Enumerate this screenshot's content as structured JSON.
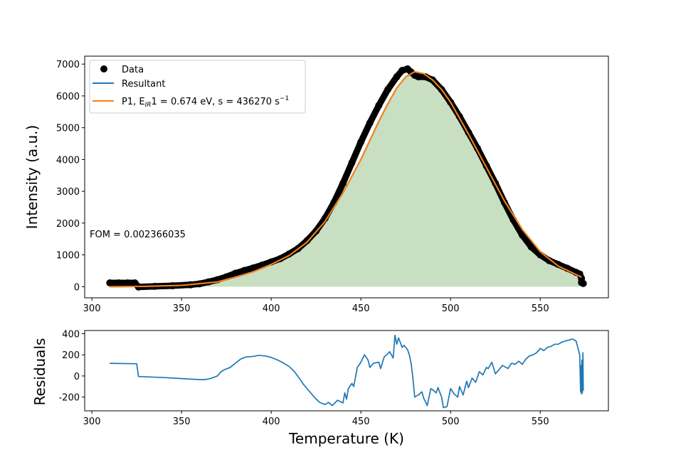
{
  "chart_data": [
    {
      "type": "scatter",
      "ylabel": "Intensity  (a.u.)",
      "xlim": [
        296,
        588
      ],
      "ylim": [
        -350,
        7250
      ],
      "xticks": [
        300,
        350,
        400,
        450,
        500,
        550
      ],
      "yticks": [
        0,
        1000,
        2000,
        3000,
        4000,
        5000,
        6000,
        7000
      ],
      "grid": false,
      "legend_position": "top-left",
      "legend": [
        {
          "label": "Data",
          "marker": "dot",
          "color": "#000000"
        },
        {
          "label": "Resultant",
          "marker": "line",
          "color": "#1f77b4"
        },
        {
          "label_prefix": "P1, E",
          "label_sub": "IR",
          "label_mid": "1 = 0.674 eV, s = 436270 s",
          "label_sup": "−1",
          "marker": "line",
          "color": "#ff7f0e"
        }
      ],
      "annotation": "FOM = 0.002366035",
      "fill_color": "#c8dfc2",
      "series": [
        {
          "name": "Data",
          "color": "#000000",
          "x": [
            310,
            315,
            320,
            324,
            326,
            335,
            345,
            355,
            360,
            365,
            370,
            375,
            380,
            385,
            390,
            395,
            400,
            405,
            410,
            415,
            420,
            425,
            430,
            435,
            440,
            445,
            450,
            455,
            460,
            465,
            470,
            473,
            476,
            478,
            480,
            482,
            486,
            490,
            495,
            500,
            505,
            510,
            515,
            520,
            525,
            530,
            535,
            540,
            545,
            550,
            555,
            560,
            565,
            570,
            572,
            573,
            573,
            574
          ],
          "y": [
            120,
            120,
            120,
            120,
            -10,
            10,
            30,
            60,
            90,
            150,
            220,
            310,
            420,
            510,
            590,
            680,
            780,
            880,
            1030,
            1200,
            1450,
            1750,
            2150,
            2650,
            3250,
            3900,
            4550,
            5150,
            5700,
            6200,
            6600,
            6800,
            6850,
            6750,
            6650,
            6600,
            6600,
            6500,
            6200,
            5800,
            5350,
            4850,
            4350,
            3800,
            3250,
            2650,
            2100,
            1620,
            1250,
            1000,
            820,
            700,
            580,
            450,
            400,
            260,
            130,
            100
          ]
        },
        {
          "name": "Resultant",
          "color": "#1f77b4",
          "x": [
            310,
            330,
            350,
            370,
            380,
            390,
            400,
            410,
            420,
            430,
            440,
            450,
            460,
            465,
            470,
            475,
            480,
            485,
            490,
            495,
            500,
            510,
            520,
            530,
            540,
            550,
            560,
            570,
            573
          ],
          "y": [
            0,
            10,
            40,
            150,
            300,
            470,
            700,
            980,
            1400,
            2050,
            2950,
            4000,
            5200,
            5750,
            6250,
            6600,
            6760,
            6700,
            6500,
            6200,
            5800,
            4800,
            3750,
            2700,
            1800,
            1100,
            650,
            380,
            300
          ]
        },
        {
          "name": "P1, EIR1 = 0.674 eV, s = 436270 s−1",
          "color": "#ff7f0e",
          "x": [
            310,
            330,
            350,
            370,
            380,
            390,
            400,
            410,
            420,
            430,
            440,
            450,
            460,
            465,
            470,
            475,
            480,
            485,
            490,
            495,
            500,
            510,
            520,
            530,
            540,
            550,
            560,
            570,
            573
          ],
          "y": [
            0,
            10,
            40,
            150,
            300,
            470,
            700,
            980,
            1400,
            2050,
            2950,
            4000,
            5200,
            5750,
            6250,
            6600,
            6760,
            6700,
            6500,
            6200,
            5800,
            4800,
            3750,
            2700,
            1800,
            1100,
            650,
            380,
            300
          ]
        }
      ]
    },
    {
      "type": "line",
      "xlabel": "Temperature (K)",
      "ylabel": "Residuals",
      "xlim": [
        296,
        588
      ],
      "ylim": [
        -330,
        430
      ],
      "xticks": [
        300,
        350,
        400,
        450,
        500,
        550
      ],
      "yticks": [
        -200,
        0,
        200,
        400
      ],
      "grid": false,
      "series": [
        {
          "name": "Residuals",
          "color": "#1f77b4",
          "x": [
            310,
            325,
            326,
            340,
            350,
            355,
            361,
            363,
            366,
            370,
            372,
            374,
            377,
            380,
            383,
            386,
            390,
            393,
            396,
            398,
            400,
            403,
            406,
            410,
            413,
            416,
            418,
            421,
            424,
            427,
            430,
            432,
            434,
            437,
            440,
            441,
            442,
            443,
            445,
            446,
            448,
            450,
            452,
            454,
            455,
            457,
            460,
            461,
            463,
            465,
            466,
            468,
            469,
            470,
            471,
            473,
            474,
            476,
            477,
            478,
            479,
            480,
            482,
            484,
            485,
            487,
            489,
            490,
            492,
            493,
            495,
            496,
            498,
            500,
            502,
            504,
            505,
            507,
            509,
            510,
            512,
            514,
            516,
            518,
            520,
            521,
            523,
            525,
            527,
            529,
            530,
            532,
            534,
            536,
            538,
            540,
            542,
            544,
            546,
            548,
            550,
            552,
            554,
            556,
            558,
            560,
            562,
            564,
            566,
            568,
            570,
            572,
            572.5,
            572.8,
            573,
            573.2,
            573.5,
            573.8,
            574
          ],
          "y": [
            120,
            115,
            -5,
            -15,
            -25,
            -30,
            -35,
            -35,
            -25,
            0,
            40,
            60,
            80,
            120,
            160,
            180,
            185,
            195,
            190,
            185,
            175,
            155,
            130,
            90,
            40,
            -30,
            -80,
            -140,
            -200,
            -250,
            -270,
            -250,
            -280,
            -230,
            -255,
            -160,
            -220,
            -120,
            -70,
            -100,
            80,
            130,
            200,
            150,
            80,
            120,
            130,
            70,
            180,
            210,
            230,
            170,
            385,
            300,
            360,
            270,
            290,
            250,
            200,
            120,
            -20,
            -200,
            -180,
            -150,
            -210,
            -280,
            -120,
            -130,
            -160,
            -110,
            -200,
            -300,
            -290,
            -120,
            -170,
            -200,
            -100,
            -180,
            -50,
            -110,
            -20,
            -60,
            40,
            10,
            80,
            70,
            130,
            20,
            60,
            100,
            90,
            70,
            120,
            110,
            140,
            110,
            160,
            190,
            200,
            220,
            260,
            240,
            270,
            280,
            300,
            300,
            320,
            330,
            340,
            350,
            330,
            200,
            -150,
            100,
            -170,
            150,
            -160,
            220,
            -140
          ]
        }
      ]
    }
  ]
}
